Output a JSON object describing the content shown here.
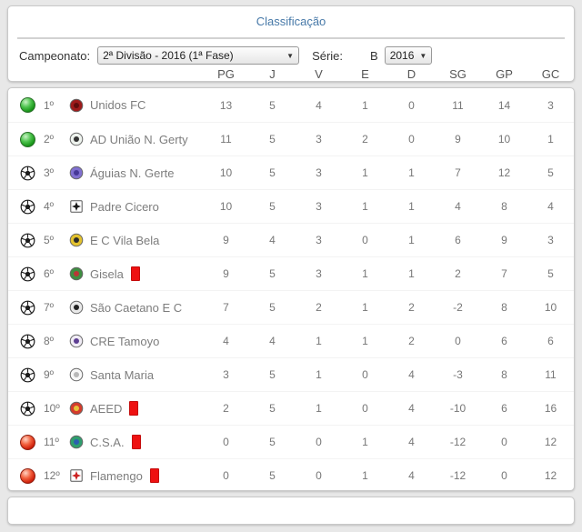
{
  "page": {
    "title": "Classificação"
  },
  "filters": {
    "campeonato_label": "Campeonato:",
    "campeonato_value": "2ª Divisão - 2016 (1ª Fase)",
    "serie_label": "Série:",
    "serie_value": "B",
    "year_value": "2016"
  },
  "colors": {
    "title_blue": "#4779a8",
    "red_card": "#ee1111",
    "promotion_green": "#149114",
    "relegation_red": "#cc1c08",
    "page_background": "#e8e8e8"
  },
  "table": {
    "columns": [
      "PG",
      "J",
      "V",
      "E",
      "D",
      "SG",
      "GP",
      "GC"
    ],
    "rows": [
      {
        "pos": "1º",
        "status": "promotion",
        "team": "Unidos FC",
        "red_card": false,
        "badge": {
          "shape": "circle",
          "c1": "#9e1b1b",
          "c2": "#5e0d0d",
          "detail": "dot"
        },
        "values": [
          13,
          5,
          4,
          1,
          0,
          11,
          14,
          3
        ]
      },
      {
        "pos": "2º",
        "status": "promotion",
        "team": "AD União N. Gerty",
        "red_card": false,
        "badge": {
          "shape": "circle",
          "c1": "#eef3ee",
          "c2": "#333333",
          "detail": "dot"
        },
        "values": [
          11,
          5,
          3,
          2,
          0,
          9,
          10,
          1
        ]
      },
      {
        "pos": "3º",
        "status": "ball",
        "team": "Águias N. Gerte",
        "red_card": false,
        "badge": {
          "shape": "circle",
          "c1": "#8070d0",
          "c2": "#463897",
          "detail": "dot"
        },
        "values": [
          10,
          5,
          3,
          1,
          1,
          7,
          12,
          5
        ]
      },
      {
        "pos": "4º",
        "status": "ball",
        "team": "Padre Cicero",
        "red_card": false,
        "badge": {
          "shape": "square",
          "c1": "#ffffff",
          "c2": "#1a1a1a",
          "detail": "cross"
        },
        "values": [
          10,
          5,
          3,
          1,
          1,
          4,
          8,
          4
        ]
      },
      {
        "pos": "5º",
        "status": "ball",
        "team": "E C Vila Bela",
        "red_card": false,
        "badge": {
          "shape": "circle",
          "c1": "#e3c22e",
          "c2": "#2b2b2b",
          "detail": "dot"
        },
        "values": [
          9,
          4,
          3,
          0,
          1,
          6,
          9,
          3
        ]
      },
      {
        "pos": "6º",
        "status": "ball",
        "team": "Gisela",
        "red_card": true,
        "badge": {
          "shape": "circle",
          "c1": "#3e8e41",
          "c2": "#b93636",
          "detail": "dot"
        },
        "values": [
          9,
          5,
          3,
          1,
          1,
          2,
          7,
          5
        ]
      },
      {
        "pos": "7º",
        "status": "ball",
        "team": "São Caetano E C",
        "red_card": false,
        "badge": {
          "shape": "circle",
          "c1": "#e9e9e9",
          "c2": "#222222",
          "detail": "dot"
        },
        "values": [
          7,
          5,
          2,
          1,
          2,
          -2,
          8,
          10
        ]
      },
      {
        "pos": "8º",
        "status": "ball",
        "team": "CRE Tamoyo",
        "red_card": false,
        "badge": {
          "shape": "circle",
          "c1": "#f0ecf5",
          "c2": "#5e3f93",
          "detail": "dot"
        },
        "values": [
          4,
          4,
          1,
          1,
          2,
          0,
          6,
          6
        ]
      },
      {
        "pos": "9º",
        "status": "ball",
        "team": "Santa Maria",
        "red_card": false,
        "badge": {
          "shape": "circle",
          "c1": "#f8f8f8",
          "c2": "#b8b8b8",
          "detail": "dot"
        },
        "values": [
          3,
          5,
          1,
          0,
          4,
          -3,
          8,
          11
        ]
      },
      {
        "pos": "10º",
        "status": "ball",
        "team": "AEED",
        "red_card": true,
        "badge": {
          "shape": "circle",
          "c1": "#d43c2c",
          "c2": "#e8c23a",
          "detail": "dot"
        },
        "values": [
          2,
          5,
          1,
          0,
          4,
          -10,
          6,
          16
        ]
      },
      {
        "pos": "11º",
        "status": "relegation",
        "team": "C.S.A.",
        "red_card": true,
        "badge": {
          "shape": "circle",
          "c1": "#2f9e6e",
          "c2": "#2b5fb0",
          "detail": "dot"
        },
        "values": [
          0,
          5,
          0,
          1,
          4,
          -12,
          0,
          12
        ]
      },
      {
        "pos": "12º",
        "status": "relegation",
        "team": "Flamengo",
        "red_card": true,
        "badge": {
          "shape": "square",
          "c1": "#ffffff",
          "c2": "#cc2222",
          "detail": "cross"
        },
        "values": [
          0,
          5,
          0,
          1,
          4,
          -12,
          0,
          12
        ]
      }
    ]
  }
}
